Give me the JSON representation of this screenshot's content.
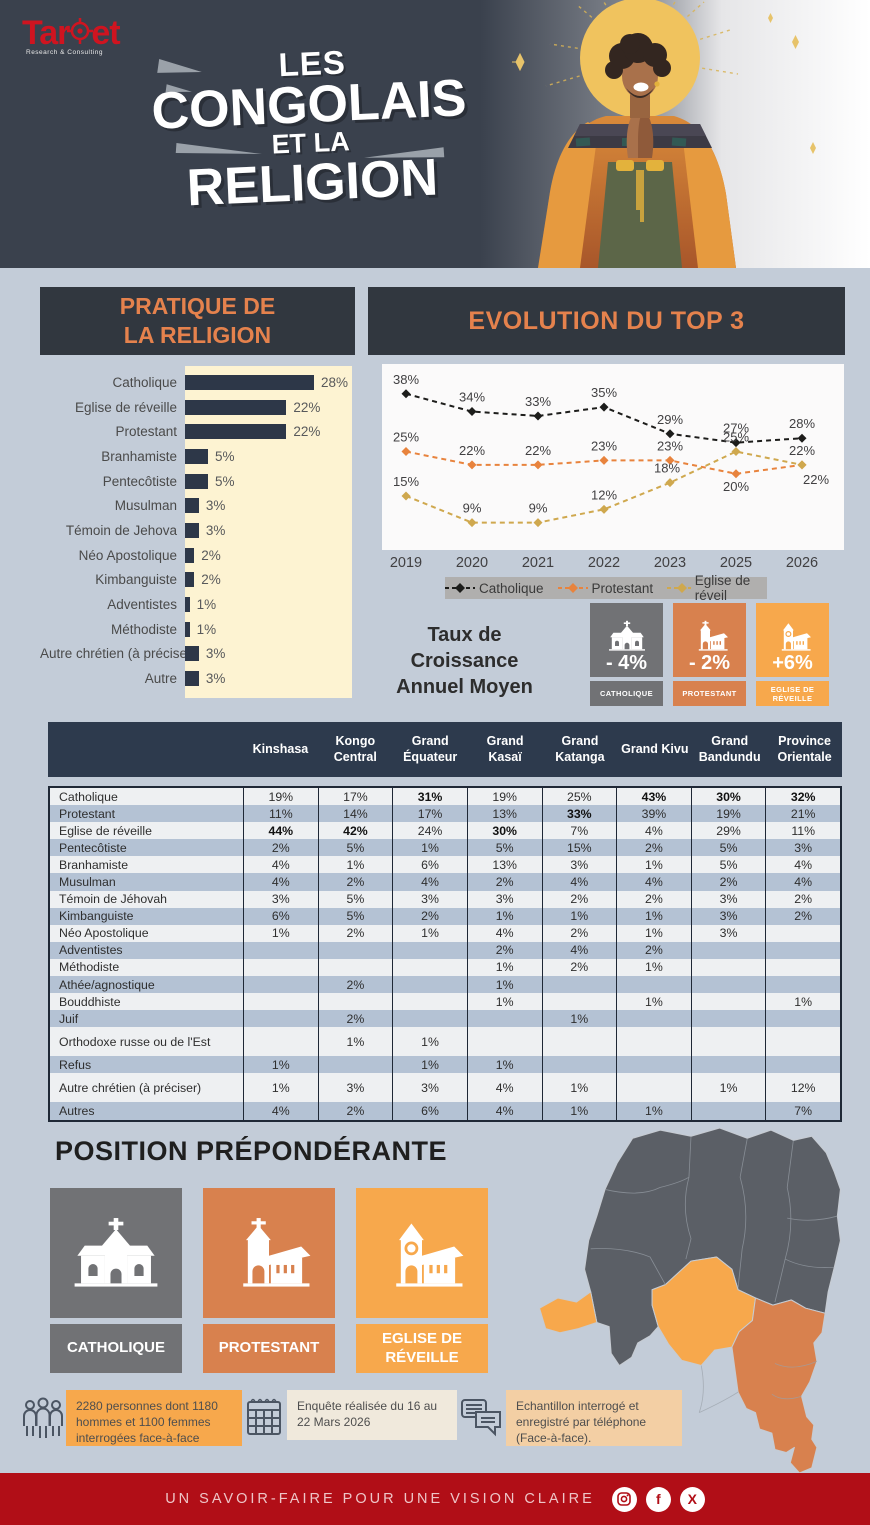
{
  "header": {
    "logo": {
      "brand_left": "Tar",
      "brand_right": "et",
      "tagline": "Research & Consulting"
    },
    "title_lines": [
      "LES",
      "CONGOLAIS",
      "ET LA",
      "RELIGION"
    ]
  },
  "practice": {
    "title_line1": "PRATIQUE DE",
    "title_line2": "LA RELIGION"
  },
  "evolution": {
    "title": "EVOLUTION DU TOP 3"
  },
  "growth": {
    "line1": "Taux de Croissance",
    "line2": "Annuel Moyen",
    "cards": [
      {
        "value": "- 4%",
        "label": "CATHOLIQUE",
        "color": "#717275",
        "icon": "church-catholic-icon"
      },
      {
        "value": "- 2%",
        "label": "PROTESTANT",
        "color": "#d8814e",
        "icon": "church-tower-icon"
      },
      {
        "value": "+6%",
        "label": "EGLISE DE RÉVEILLE",
        "color": "#f7a84c",
        "icon": "church-circle-icon"
      }
    ]
  },
  "table": {
    "columns": [
      "Kinshasa",
      "Kongo Central",
      "Grand Équateur",
      "Grand Kasaï",
      "Grand Katanga",
      "Grand Kivu",
      "Grand Bandundu",
      "Province Orientale"
    ],
    "rows": [
      {
        "label": "Catholique",
        "values": [
          "19%",
          "17%",
          "31%",
          "19%",
          "25%",
          "43%",
          "30%",
          "32%"
        ],
        "bold": [
          2,
          5,
          6,
          7
        ]
      },
      {
        "label": "Protestant",
        "values": [
          "11%",
          "14%",
          "17%",
          "13%",
          "33%",
          "39%",
          "19%",
          "21%"
        ],
        "bold": [
          4
        ]
      },
      {
        "label": "Eglise de réveille",
        "values": [
          "44%",
          "42%",
          "24%",
          "30%",
          "7%",
          "4%",
          "29%",
          "11%"
        ],
        "bold": [
          0,
          1,
          3
        ]
      },
      {
        "label": "Pentecôtiste",
        "values": [
          "2%",
          "5%",
          "1%",
          "5%",
          "15%",
          "2%",
          "5%",
          "3%"
        ]
      },
      {
        "label": "Branhamiste",
        "values": [
          "4%",
          "1%",
          "6%",
          "13%",
          "3%",
          "1%",
          "5%",
          "4%"
        ]
      },
      {
        "label": "Musulman",
        "values": [
          "4%",
          "2%",
          "4%",
          "2%",
          "4%",
          "4%",
          "2%",
          "4%"
        ]
      },
      {
        "label": "Témoin de Jéhovah",
        "values": [
          "3%",
          "5%",
          "3%",
          "3%",
          "2%",
          "2%",
          "3%",
          "2%"
        ]
      },
      {
        "label": "Kimbanguiste",
        "values": [
          "6%",
          "5%",
          "2%",
          "1%",
          "1%",
          "1%",
          "3%",
          "2%"
        ]
      },
      {
        "label": "Néo Apostolique",
        "values": [
          "1%",
          "2%",
          "1%",
          "4%",
          "2%",
          "1%",
          "3%",
          ""
        ]
      },
      {
        "label": "Adventistes",
        "values": [
          "",
          "",
          "",
          "2%",
          "4%",
          "2%",
          "",
          ""
        ]
      },
      {
        "label": "Méthodiste",
        "values": [
          "",
          "",
          "",
          "1%",
          "2%",
          "1%",
          "",
          ""
        ]
      },
      {
        "label": "Athée/agnostique",
        "values": [
          "",
          "2%",
          "",
          "1%",
          "",
          "",
          "",
          ""
        ]
      },
      {
        "label": "Bouddhiste",
        "values": [
          "",
          "",
          "",
          "1%",
          "",
          "1%",
          "",
          "1%"
        ]
      },
      {
        "label": "Juif",
        "values": [
          "",
          "2%",
          "",
          "",
          "1%",
          "",
          "",
          ""
        ]
      },
      {
        "label": "Orthodoxe russe ou de l'Est",
        "values": [
          "",
          "1%",
          "1%",
          "",
          "",
          "",
          "",
          ""
        ],
        "tall": true
      },
      {
        "label": "Refus",
        "values": [
          "1%",
          "",
          "1%",
          "1%",
          "",
          "",
          "",
          ""
        ]
      },
      {
        "label": "Autre chrétien  (à préciser)",
        "values": [
          "1%",
          "3%",
          "3%",
          "4%",
          "1%",
          "",
          "1%",
          "12%"
        ],
        "tall": true
      },
      {
        "label": "Autres",
        "values": [
          "4%",
          "2%",
          "6%",
          "4%",
          "1%",
          "1%",
          "",
          "7%"
        ]
      }
    ]
  },
  "position": {
    "title": "POSITION PRÉPONDÉRANTE",
    "cards": [
      {
        "label": "CATHOLIQUE",
        "color": "#717275",
        "icon": "church-catholic-icon"
      },
      {
        "label": "PROTESTANT",
        "color": "#d8814e",
        "icon": "church-tower-icon"
      },
      {
        "label": "EGLISE DE RÉVEILLE",
        "color": "#f7a84c",
        "icon": "church-circle-icon"
      }
    ]
  },
  "footnotes": [
    {
      "icon": "people-icon",
      "text": "2280 personnes dont 1180 hommes et 1100 femmes interrogées face-à-face"
    },
    {
      "icon": "calendar-icon",
      "text": "Enquête réalisée du 16 au 22 Mars 2026"
    },
    {
      "icon": "chat-icon",
      "text": "Echantillon interrogé et enregistré par téléphone (Face-à-face)."
    }
  ],
  "footer": {
    "slogan": "UN SAVOIR-FAIRE POUR UNE VISION CLAIRE",
    "social": [
      "instagram-icon",
      "facebook-icon",
      "x-icon"
    ]
  },
  "colors": {
    "background": "#c3ccd8",
    "header_dark": "#3a414d",
    "title_box": "#31373f",
    "accent_orange": "#e5824d",
    "cream_panel": "#fdf3d2",
    "bar_navy": "#2d3748",
    "table_header": "#2d3a4d",
    "row_light": "#eef0f2",
    "row_blue": "#b4c2d4",
    "card_gray": "#717275",
    "card_orange": "#d8814e",
    "card_amber": "#f7a84c",
    "footer_red": "#b10e17",
    "map_gray": "#5b5f66"
  },
  "chart_data": [
    {
      "type": "bar",
      "title": "PRATIQUE DE LA RELIGION",
      "orientation": "horizontal",
      "categories": [
        "Catholique",
        "Eglise de réveille",
        "Protestant",
        "Branhamiste",
        "Pentecôtiste",
        "Musulman",
        "Témoin de Jehova",
        "Néo Apostolique",
        "Kimbanguiste",
        "Adventistes",
        "Méthodiste",
        "Autre chrétien (à préciser)",
        "Autre"
      ],
      "values": [
        28,
        22,
        22,
        5,
        5,
        3,
        3,
        2,
        2,
        1,
        1,
        3,
        3
      ],
      "value_suffix": "%",
      "xlabel": "",
      "ylabel": "",
      "xlim": [
        0,
        30
      ],
      "grid": false
    },
    {
      "type": "line",
      "title": "EVOLUTION DU TOP 3",
      "x": [
        "2019",
        "2020",
        "2021",
        "2022",
        "2023",
        "2025",
        "2026"
      ],
      "series": [
        {
          "name": "Catholique",
          "color": "#1d1d1b",
          "values": [
            38,
            34,
            33,
            35,
            29,
            27,
            28
          ],
          "label_offsets": [
            [
              0,
              -10
            ],
            [
              0,
              -10
            ],
            [
              0,
              -10
            ],
            [
              0,
              -10
            ],
            [
              0,
              -10
            ],
            [
              0,
              -10
            ],
            [
              0,
              -10
            ]
          ]
        },
        {
          "name": "Protestant",
          "color": "#e8833d",
          "values": [
            25,
            22,
            22,
            23,
            23,
            20,
            22
          ],
          "label_offsets": [
            [
              0,
              -10
            ],
            [
              0,
              -10
            ],
            [
              0,
              -10
            ],
            [
              0,
              -10
            ],
            [
              0,
              -10
            ],
            [
              0,
              17
            ],
            [
              0,
              -10
            ]
          ]
        },
        {
          "name": "Eglise de réveil",
          "color": "#cfa84e",
          "values": [
            15,
            9,
            9,
            12,
            18,
            25,
            22
          ],
          "label_offsets": [
            [
              0,
              -10
            ],
            [
              0,
              -10
            ],
            [
              0,
              -10
            ],
            [
              0,
              -10
            ],
            [
              -3,
              -10
            ],
            [
              0,
              -10
            ],
            [
              14,
              19
            ]
          ]
        }
      ],
      "value_suffix": "%",
      "ylim": [
        5,
        42
      ],
      "grid": false,
      "line_style": "dashed",
      "marker": "diamond",
      "legend_position": "bottom"
    }
  ]
}
